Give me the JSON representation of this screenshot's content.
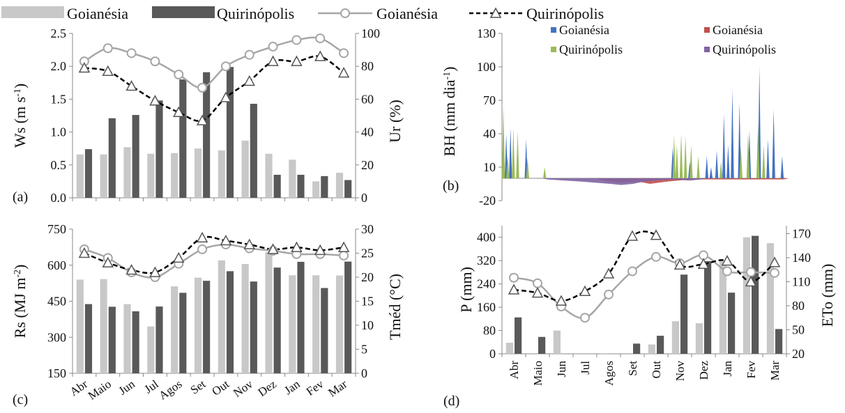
{
  "legend_top": [
    {
      "label": "Goianésia",
      "kind": "bar",
      "color": "#c8c8c8"
    },
    {
      "label": "Quirinópolis",
      "kind": "bar",
      "color": "#595959"
    },
    {
      "label": "Goianésia",
      "kind": "line-circle",
      "color": "#a6a6a6"
    },
    {
      "label": "Quirinópolis",
      "kind": "line-triangle-dashed",
      "color": "#000000"
    }
  ],
  "months": [
    "Abr",
    "Maio",
    "Jun",
    "Jul",
    "Agos",
    "Set",
    "Out",
    "Nov",
    "Dez",
    "Jan",
    "Fev",
    "Mar"
  ],
  "panel_labels": {
    "a": "(a)",
    "b": "(b)",
    "c": "(c)",
    "d": "(d)"
  },
  "legend_b": [
    {
      "label": "Goianésia",
      "color": "#4472c4"
    },
    {
      "label": "Goianésia",
      "color": "#c0504d"
    },
    {
      "label": "Quirinópolis",
      "color": "#9bbb59"
    },
    {
      "label": "Quirinópolis",
      "color": "#8064a2"
    }
  ],
  "chart_data": [
    {
      "id": "a",
      "type": "bar+line",
      "xlabel": "",
      "ylabel": "Ws  (m s-1)",
      "ylabel_parts": [
        "Ws  (m s",
        "-1",
        ")"
      ],
      "y2label": "Ur (%)",
      "ylim": [
        0,
        2.5
      ],
      "y_ticks": [
        "0.0",
        "0.5",
        "1.0",
        "1.5",
        "2.0",
        "2.5"
      ],
      "y2lim": [
        0,
        100
      ],
      "y2_ticks": [
        "0",
        "20",
        "40",
        "60",
        "80",
        "100"
      ],
      "categories": [
        "Abr",
        "Maio",
        "Jun",
        "Jul",
        "Agos",
        "Set",
        "Out",
        "Nov",
        "Dez",
        "Jan",
        "Fev",
        "Mar"
      ],
      "series": [
        {
          "name": "Goianésia",
          "kind": "bar",
          "axis": "left",
          "values": [
            0.66,
            0.66,
            0.77,
            0.67,
            0.68,
            0.75,
            0.72,
            0.87,
            0.67,
            0.58,
            0.25,
            0.38
          ]
        },
        {
          "name": "Quirinópolis",
          "kind": "bar",
          "axis": "left",
          "values": [
            0.74,
            1.21,
            1.26,
            1.48,
            1.8,
            1.91,
            1.99,
            1.43,
            0.35,
            0.35,
            0.33,
            0.27
          ]
        },
        {
          "name": "Goianésia",
          "kind": "line",
          "axis": "right",
          "values": [
            83,
            91,
            88,
            83,
            75,
            67,
            80,
            87,
            92,
            96,
            97,
            88
          ]
        },
        {
          "name": "Quirinópolis",
          "kind": "line",
          "axis": "right",
          "values": [
            79,
            77,
            68,
            59,
            52,
            47,
            61,
            71,
            83,
            83,
            86,
            76
          ]
        }
      ]
    },
    {
      "id": "b",
      "type": "area",
      "ylabel": "BH (mm dia-1)",
      "ylabel_parts": [
        "BH (mm dia",
        "-1",
        ")"
      ],
      "ylim": [
        -20,
        130
      ],
      "y_ticks": [
        "-20",
        "10",
        "40",
        "70",
        "100",
        "130"
      ],
      "series": [
        {
          "name": "Goianésia",
          "sign": "positive",
          "color": "#4472c4",
          "peaks": [
            [
              0.015,
              40
            ],
            [
              0.03,
              45
            ],
            [
              0.085,
              35
            ],
            [
              0.6,
              28
            ],
            [
              0.66,
              15
            ],
            [
              0.72,
              20
            ],
            [
              0.735,
              10
            ],
            [
              0.755,
              25
            ],
            [
              0.78,
              58
            ],
            [
              0.795,
              30
            ],
            [
              0.81,
              80
            ],
            [
              0.835,
              68
            ],
            [
              0.87,
              43
            ],
            [
              0.905,
              100
            ],
            [
              0.935,
              35
            ],
            [
              0.955,
              62
            ],
            [
              0.985,
              20
            ]
          ]
        },
        {
          "name": "Goianésia",
          "sign": "negative",
          "color": "#c0504d",
          "dips": [
            [
              0.35,
              -2
            ],
            [
              0.42,
              -4
            ],
            [
              0.48,
              -3
            ],
            [
              0.52,
              -5
            ],
            [
              0.55,
              -4
            ],
            [
              0.58,
              -3
            ],
            [
              0.62,
              -2
            ],
            [
              0.66,
              -1
            ],
            [
              0.99,
              -1
            ]
          ]
        },
        {
          "name": "Quirinópolis",
          "sign": "positive",
          "color": "#9bbb59",
          "peaks": [
            [
              0.005,
              65
            ],
            [
              0.02,
              20
            ],
            [
              0.04,
              45
            ],
            [
              0.055,
              42
            ],
            [
              0.09,
              18
            ],
            [
              0.15,
              10
            ],
            [
              0.605,
              39
            ],
            [
              0.615,
              30
            ],
            [
              0.63,
              40
            ],
            [
              0.645,
              38
            ],
            [
              0.665,
              30
            ],
            [
              0.69,
              20
            ],
            [
              0.77,
              15
            ],
            [
              0.84,
              28
            ],
            [
              0.865,
              40
            ],
            [
              0.9,
              50
            ],
            [
              0.92,
              30
            ]
          ]
        },
        {
          "name": "Quirinópolis",
          "sign": "negative",
          "color": "#8064a2",
          "dips": [
            [
              0.16,
              -1
            ],
            [
              0.22,
              -2
            ],
            [
              0.28,
              -3
            ],
            [
              0.33,
              -4
            ],
            [
              0.38,
              -5
            ],
            [
              0.42,
              -6
            ],
            [
              0.46,
              -5
            ],
            [
              0.5,
              -3
            ],
            [
              0.54,
              -2
            ],
            [
              0.6,
              -1
            ],
            [
              0.66,
              -2
            ],
            [
              0.7,
              -1
            ]
          ]
        }
      ]
    },
    {
      "id": "c",
      "type": "bar+line",
      "ylabel": "Rs (MJ m-2)",
      "ylabel_parts": [
        "Rs (MJ m",
        "-2",
        ")"
      ],
      "y2label": "Tméd (°C)",
      "ylim": [
        150,
        750
      ],
      "y_ticks": [
        "150",
        "300",
        "450",
        "600",
        "750"
      ],
      "y2lim": [
        0,
        30
      ],
      "y2_ticks": [
        "0",
        "5",
        "10",
        "15",
        "20",
        "25",
        "30"
      ],
      "categories": [
        "Abr",
        "Maio",
        "Jun",
        "Jul",
        "Agos",
        "Set",
        "Out",
        "Nov",
        "Dez",
        "Jan",
        "Fev",
        "Mar"
      ],
      "series": [
        {
          "name": "Goianésia",
          "kind": "bar",
          "axis": "left",
          "values": [
            540,
            542,
            438,
            345,
            512,
            548,
            620,
            605,
            655,
            558,
            558,
            557
          ]
        },
        {
          "name": "Quirinópolis",
          "kind": "bar",
          "axis": "left",
          "values": [
            438,
            427,
            408,
            428,
            485,
            535,
            575,
            532,
            590,
            614,
            505,
            615
          ]
        },
        {
          "name": "Goianésia",
          "kind": "line",
          "axis": "right",
          "values": [
            25.8,
            24.0,
            21.0,
            20.0,
            22.8,
            25.8,
            26.8,
            26.0,
            25.5,
            24.8,
            24.8,
            24.5
          ]
        },
        {
          "name": "Quirinópolis",
          "kind": "line",
          "axis": "right",
          "values": [
            25.0,
            23.0,
            21.5,
            21.0,
            24.0,
            28.2,
            27.6,
            26.8,
            25.8,
            26.2,
            25.6,
            26.2
          ]
        }
      ]
    },
    {
      "id": "d",
      "type": "bar+line",
      "ylabel": "P (mm)",
      "y2label": "ETo (mm)",
      "ylim": [
        0,
        440
      ],
      "y_ticks": [
        "0",
        "80",
        "160",
        "240",
        "320",
        "400"
      ],
      "y2lim": [
        20,
        180
      ],
      "y2_ticks": [
        "20",
        "50",
        "80",
        "110",
        "140",
        "170"
      ],
      "categories": [
        "Abr",
        "Maio",
        "Jun",
        "Jul",
        "Agos",
        "Set",
        "Out",
        "Nov",
        "Dez",
        "Jan",
        "Fev",
        "Mar"
      ],
      "series": [
        {
          "name": "Goianésia",
          "kind": "bar",
          "axis": "left",
          "values": [
            38,
            0,
            80,
            0,
            2,
            0,
            32,
            112,
            105,
            320,
            400,
            380
          ]
        },
        {
          "name": "Quirinópolis",
          "kind": "bar",
          "axis": "left",
          "values": [
            125,
            58,
            0,
            0,
            0,
            35,
            62,
            272,
            318,
            210,
            405,
            85
          ]
        },
        {
          "name": "Goianésia",
          "kind": "line",
          "axis": "right",
          "values": [
            115,
            108,
            79,
            65,
            94,
            123,
            141,
            133,
            143,
            123,
            122,
            121
          ]
        },
        {
          "name": "Quirinópolis",
          "kind": "line",
          "axis": "right",
          "values": [
            100,
            96,
            86,
            98,
            120,
            167,
            168,
            131,
            132,
            136,
            110,
            134
          ]
        }
      ]
    }
  ]
}
